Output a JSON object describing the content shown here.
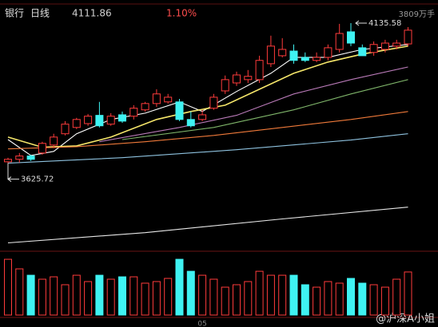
{
  "chart_data": {
    "type": "candlestick",
    "title": "银行",
    "period": "日线",
    "last_price": 4111.86,
    "change": "1.10%",
    "volume_label": "3809万手",
    "watermark": "@沪深A小姐",
    "up_color": "#ff3b3b",
    "down_color": "#3ff2f2",
    "ylim": [
      3320,
      4185
    ],
    "vlim": [
      0,
      5430
    ],
    "categories": [
      null,
      null,
      null,
      null,
      null,
      null,
      null,
      null,
      null,
      null,
      null,
      null,
      null,
      null,
      null,
      null,
      null,
      "05",
      null,
      null,
      null,
      null,
      null,
      null,
      null,
      null,
      null,
      null,
      null,
      null,
      null,
      null,
      null,
      null,
      null,
      null
    ],
    "open": [
      3631,
      3640,
      3652,
      3663,
      3692,
      3733,
      3756,
      3770,
      3800,
      3768,
      3802,
      3797,
      3820,
      3843,
      3849,
      3849,
      3785,
      3785,
      3826,
      3889,
      3918,
      3930,
      3930,
      3988,
      4017,
      4034,
      4011,
      4000,
      4011,
      4040,
      4104,
      4046,
      4029,
      4040,
      4052,
      4060
    ],
    "high": [
      3646,
      3663,
      3657,
      3704,
      3733,
      3779,
      3791,
      3805,
      3849,
      3808,
      3814,
      3837,
      3849,
      3895,
      3878,
      3860,
      3814,
      3820,
      3878,
      3945,
      3959,
      3965,
      4017,
      4090,
      4081,
      4058,
      4029,
      4029,
      4058,
      4133,
      4135.58,
      4058,
      4069,
      4075,
      4075,
      4121
    ],
    "low": [
      3625.72,
      3628,
      3634,
      3657,
      3681,
      3727,
      3750,
      3762,
      3756,
      3762,
      3773,
      3785,
      3814,
      3831,
      3843,
      3779,
      3756,
      3779,
      3820,
      3878,
      3907,
      3918,
      3918,
      3976,
      4011,
      3988,
      3994,
      3994,
      4000,
      4029,
      4052,
      4017,
      4017,
      4029,
      4040,
      4052
    ],
    "close": [
      3640,
      3652,
      3640,
      3698,
      3721,
      3768,
      3785,
      3797,
      3762,
      3797,
      3779,
      3826,
      3843,
      3878,
      3866,
      3785,
      3762,
      3802,
      3866,
      3930,
      3947,
      3942,
      4000,
      4052,
      4040,
      4000,
      4000,
      4011,
      4046,
      4098,
      4063,
      4017,
      4058,
      4063,
      4063,
      4110
    ],
    "volume": [
      4930,
      4085,
      3520,
      3170,
      3380,
      2680,
      3520,
      2960,
      3520,
      3170,
      3380,
      3380,
      2820,
      2960,
      3240,
      4930,
      3870,
      3520,
      3170,
      2465,
      2680,
      2960,
      3870,
      3520,
      3520,
      3520,
      2680,
      2465,
      2960,
      2820,
      3240,
      2820,
      2680,
      2465,
      3170,
      3809
    ],
    "max_high": 4135.58,
    "min_low": 3625.72,
    "ma_lines": [
      {
        "color": "#ffffff",
        "x": [
          0,
          2,
          4,
          6,
          9,
          12,
          15,
          17,
          20,
          23,
          25,
          28,
          31,
          35
        ],
        "values": [
          3712,
          3654,
          3669,
          3733,
          3785,
          3808,
          3849,
          3814,
          3887,
          3953,
          4011,
          4011,
          4040,
          4058
        ]
      },
      {
        "color": "#f5e66a",
        "x": [
          0,
          3,
          6,
          9,
          13,
          16,
          19,
          22,
          25,
          28,
          31,
          35
        ],
        "values": [
          3721,
          3684,
          3689,
          3721,
          3785,
          3814,
          3837,
          3895,
          3953,
          3994,
          4023,
          4052
        ]
      },
      {
        "color": "#b97ab8",
        "x": [
          8,
          15,
          20,
          25,
          30,
          35
        ],
        "values": [
          3704,
          3756,
          3800,
          3878,
          3930,
          3976
        ]
      },
      {
        "color": "#7fb56a",
        "x": [
          10,
          18,
          25,
          30,
          35
        ],
        "values": [
          3712,
          3756,
          3820,
          3878,
          3930
        ]
      },
      {
        "color": "#f07a3a",
        "x": [
          0,
          6,
          12,
          18,
          24,
          30,
          35
        ],
        "values": [
          3678,
          3686,
          3704,
          3727,
          3756,
          3785,
          3814
        ]
      },
      {
        "color": "#8fc3e0",
        "x": [
          0,
          10,
          20,
          30,
          35
        ],
        "values": [
          3626,
          3646,
          3675,
          3710,
          3733
        ]
      },
      {
        "color": "#e8e8e8",
        "x": [
          0,
          12,
          24,
          35
        ],
        "values": [
          3336,
          3373,
          3423,
          3466
        ]
      }
    ]
  }
}
